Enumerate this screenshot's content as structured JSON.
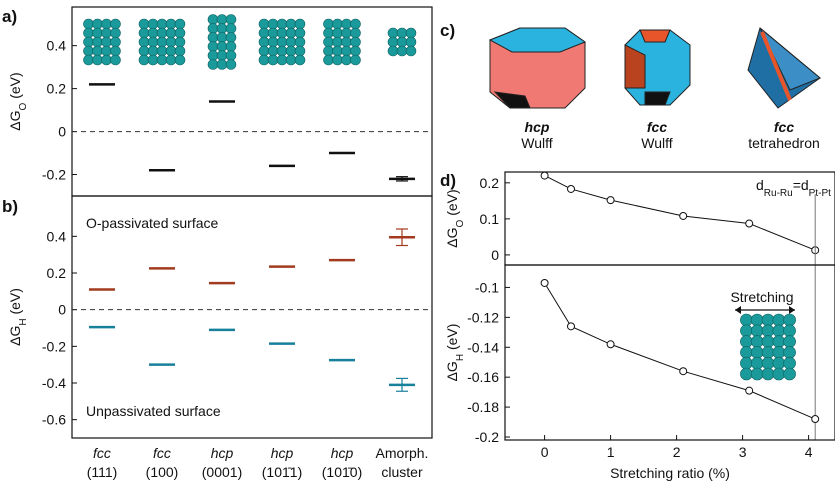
{
  "panel_labels": [
    "a)",
    "b)",
    "c)",
    "d)"
  ],
  "shapes": [
    [
      "hcp",
      "Wulff"
    ],
    [
      "fcc",
      "Wulff"
    ],
    [
      "fcc",
      "tetrahedron"
    ]
  ],
  "chart_data": [
    {
      "type": "dash",
      "ylabel": [
        "ΔG",
        "O",
        " (eV)"
      ],
      "ylim": [
        -0.3,
        0.58
      ],
      "yticks": [
        -0.2,
        0.0,
        0.2,
        0.4
      ],
      "zero_line": true,
      "series": [
        {
          "color": "#111111",
          "values": [
            0.22,
            -0.18,
            0.14,
            -0.16,
            -0.1,
            -0.22
          ],
          "errors": [
            null,
            null,
            null,
            null,
            null,
            0.01
          ]
        }
      ]
    },
    {
      "type": "dash",
      "ylabel": [
        "ΔG",
        "H",
        " (eV)"
      ],
      "ylim": [
        -0.7,
        0.62
      ],
      "yticks": [
        -0.6,
        -0.4,
        -0.2,
        0.0,
        0.2,
        0.4
      ],
      "zero_line": true,
      "categories": [
        [
          "fcc",
          "(111)"
        ],
        [
          "fcc",
          "(100)"
        ],
        [
          "hcp",
          "(0001)"
        ],
        [
          "hcp",
          "(101̄1)"
        ],
        [
          "hcp",
          "(101̄0)"
        ],
        [
          "Amorph.",
          "cluster"
        ]
      ],
      "series": [
        {
          "name": "O-passivated surface",
          "color": "#a23a1e",
          "values": [
            0.11,
            0.225,
            0.145,
            0.235,
            0.27,
            0.395
          ],
          "errors": [
            null,
            null,
            null,
            null,
            null,
            0.045
          ]
        },
        {
          "name": "Unpassivated surface",
          "color": "#17809b",
          "values": [
            -0.095,
            -0.3,
            -0.11,
            -0.185,
            -0.275,
            -0.41
          ],
          "errors": [
            null,
            null,
            null,
            null,
            null,
            0.035
          ]
        }
      ]
    },
    {
      "type": "line",
      "ylabel": [
        "ΔG",
        "O",
        " (eV)"
      ],
      "xlim": [
        -0.6,
        4.4
      ],
      "ylim": [
        -0.028,
        0.23
      ],
      "yticks": [
        0.0,
        0.1,
        0.2
      ],
      "annotation": [
        "d",
        "Ru-Ru",
        "=d",
        "Pt-Pt"
      ],
      "x": [
        0,
        0.4,
        1,
        2.1,
        3.1,
        4.1
      ],
      "series": [
        {
          "color": "#111111",
          "values": [
            0.22,
            0.183,
            0.152,
            0.108,
            0.087,
            0.013
          ]
        }
      ]
    },
    {
      "type": "line",
      "ylabel": [
        "ΔG",
        "H",
        " (eV)"
      ],
      "xlabel": "Stretching ratio (%)",
      "xlim": [
        -0.6,
        4.4
      ],
      "xticks": [
        0,
        1,
        2,
        3,
        4
      ],
      "ylim": [
        -0.202,
        -0.085
      ],
      "yticks": [
        -0.2,
        -0.18,
        -0.16,
        -0.14,
        -0.12,
        -0.1
      ],
      "annotation": "Stretching",
      "x": [
        0,
        0.4,
        1,
        2.1,
        3.1,
        4.1
      ],
      "series": [
        {
          "color": "#111111",
          "values": [
            -0.097,
            -0.126,
            -0.138,
            -0.156,
            -0.169,
            -0.188
          ]
        }
      ]
    }
  ]
}
